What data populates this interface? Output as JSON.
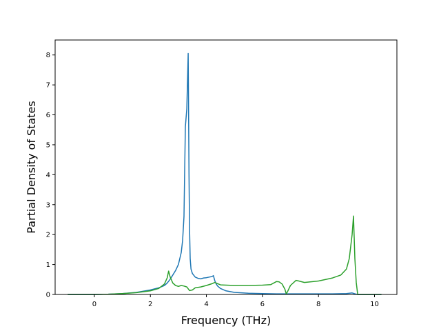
{
  "chart_data": {
    "type": "line",
    "title": "",
    "xlabel": "Frequency (THz)",
    "ylabel": "Partial Density of States",
    "xlim": [
      -1.4,
      10.8
    ],
    "ylim": [
      0,
      8.5
    ],
    "xticks": [
      0,
      2,
      4,
      6,
      8,
      10
    ],
    "yticks": [
      0,
      1,
      2,
      3,
      4,
      5,
      6,
      7,
      8
    ],
    "grid": false,
    "legend": "none",
    "series": [
      {
        "color": "#1f77b4",
        "x": [
          -0.95,
          0.0,
          0.5,
          1.0,
          1.5,
          2.0,
          2.3,
          2.5,
          2.6,
          2.7,
          2.8,
          2.9,
          3.0,
          3.1,
          3.15,
          3.2,
          3.25,
          3.3,
          3.35,
          3.38,
          3.4,
          3.42,
          3.45,
          3.5,
          3.6,
          3.7,
          3.8,
          3.9,
          4.0,
          4.1,
          4.2,
          4.25,
          4.3,
          4.35,
          4.4,
          4.5,
          4.7,
          5.0,
          5.5,
          6.0,
          6.5,
          7.0,
          7.5,
          8.0,
          8.5,
          9.0,
          9.2,
          9.3,
          9.4,
          10.25
        ],
        "y": [
          0,
          0,
          0.01,
          0.03,
          0.07,
          0.15,
          0.22,
          0.3,
          0.38,
          0.5,
          0.65,
          0.8,
          1.0,
          1.4,
          1.8,
          2.6,
          5.6,
          6.2,
          8.05,
          4.0,
          2.2,
          1.2,
          0.85,
          0.7,
          0.58,
          0.54,
          0.52,
          0.55,
          0.56,
          0.58,
          0.6,
          0.63,
          0.46,
          0.35,
          0.28,
          0.2,
          0.12,
          0.07,
          0.04,
          0.03,
          0.02,
          0.02,
          0.02,
          0.02,
          0.02,
          0.03,
          0.05,
          0.02,
          0.0,
          0.0
        ]
      },
      {
        "color": "#2ca02c",
        "x": [
          -0.95,
          0.0,
          0.5,
          1.0,
          1.5,
          2.0,
          2.3,
          2.5,
          2.6,
          2.65,
          2.7,
          2.8,
          2.9,
          3.0,
          3.1,
          3.2,
          3.3,
          3.4,
          3.5,
          3.6,
          3.8,
          4.0,
          4.2,
          4.3,
          4.5,
          5.0,
          5.5,
          6.0,
          6.3,
          6.5,
          6.6,
          6.7,
          6.8,
          6.85,
          6.9,
          7.0,
          7.2,
          7.3,
          7.5,
          8.0,
          8.5,
          8.8,
          9.0,
          9.1,
          9.2,
          9.25,
          9.3,
          9.35,
          9.4,
          10.25
        ],
        "y": [
          0,
          0,
          0.01,
          0.03,
          0.06,
          0.12,
          0.2,
          0.35,
          0.55,
          0.78,
          0.6,
          0.38,
          0.3,
          0.27,
          0.3,
          0.28,
          0.25,
          0.13,
          0.15,
          0.22,
          0.25,
          0.3,
          0.36,
          0.4,
          0.32,
          0.3,
          0.3,
          0.31,
          0.33,
          0.43,
          0.42,
          0.35,
          0.18,
          0.02,
          0.1,
          0.3,
          0.47,
          0.45,
          0.4,
          0.45,
          0.55,
          0.65,
          0.85,
          1.2,
          2.0,
          2.62,
          1.2,
          0.4,
          0.0,
          0.0
        ]
      }
    ]
  }
}
